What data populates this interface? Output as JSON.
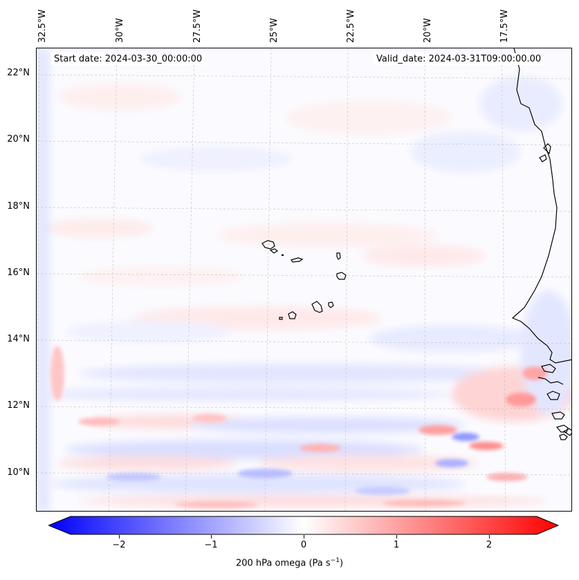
{
  "header": {
    "start_date": "Start date: 2024-03-30_00:00:00",
    "valid_date": "Valid_date: 2024-03-31T09:00:00.00"
  },
  "longitude_labels": [
    "32.5°W",
    "30°W",
    "27.5°W",
    "25°W",
    "22.5°W",
    "20°W",
    "17.5°W"
  ],
  "latitude_labels": [
    "22°N",
    "20°N",
    "18°N",
    "16°N",
    "14°N",
    "12°N",
    "10°N"
  ],
  "colorbar": {
    "ticks": [
      "−2",
      "−1",
      "0",
      "1",
      "2"
    ],
    "label_main": "200 hPa omega (Pa s",
    "label_sup": "−1",
    "label_end": ")",
    "min_color": "#0000ff",
    "mid_color": "#ffffff",
    "max_color": "#ff0000"
  },
  "map": {
    "ocean_tint": "#fbfbff",
    "coastline_color": "#000000",
    "grid_color": "#bdbdbd"
  }
}
